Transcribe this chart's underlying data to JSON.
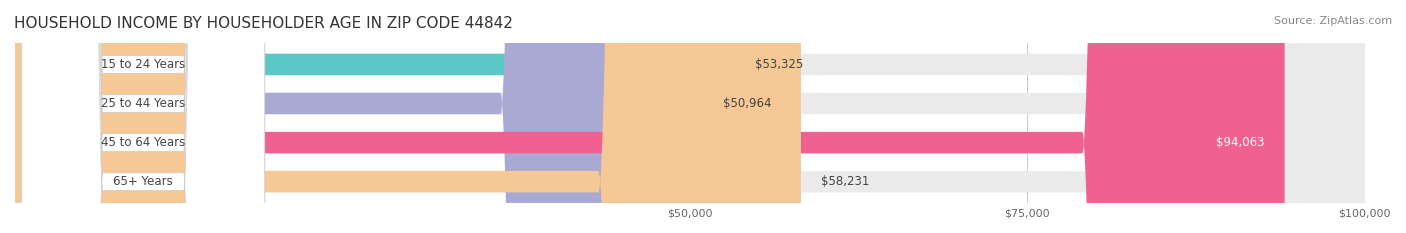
{
  "title": "HOUSEHOLD INCOME BY HOUSEHOLDER AGE IN ZIP CODE 44842",
  "source": "Source: ZipAtlas.com",
  "categories": [
    "15 to 24 Years",
    "25 to 44 Years",
    "45 to 64 Years",
    "65+ Years"
  ],
  "values": [
    53325,
    50964,
    94063,
    58231
  ],
  "bar_colors": [
    "#5bc8c8",
    "#a9a9d4",
    "#f06090",
    "#f5c896"
  ],
  "bar_bg_color": "#f0f0f0",
  "label_colors": [
    "#444444",
    "#444444",
    "#ffffff",
    "#444444"
  ],
  "xmin": 0,
  "xmax": 100000,
  "xticks": [
    50000,
    75000,
    100000
  ],
  "xtick_labels": [
    "$50,000",
    "$75,000",
    "$100,000"
  ],
  "value_labels": [
    "$53,325",
    "$50,964",
    "$94,063",
    "$58,231"
  ],
  "bar_height": 0.55,
  "fig_width": 14.06,
  "fig_height": 2.33,
  "background_color": "#ffffff",
  "title_fontsize": 11,
  "source_fontsize": 8,
  "label_fontsize": 8.5,
  "tick_fontsize": 8,
  "value_fontsize": 8.5
}
